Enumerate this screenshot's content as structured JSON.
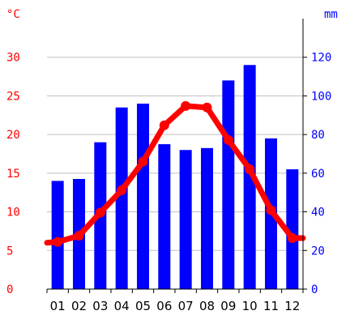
{
  "chart_data": {
    "type": "bar-line",
    "left_axis": {
      "unit": "°C",
      "ticks": [
        0,
        5,
        10,
        15,
        20,
        25,
        30
      ],
      "range": [
        0,
        35
      ],
      "color": "#ff0000"
    },
    "right_axis": {
      "unit": "mm",
      "ticks": [
        0,
        20,
        40,
        60,
        80,
        100,
        120
      ],
      "range": [
        0,
        140
      ],
      "color": "#0000ff"
    },
    "categories": [
      "01",
      "02",
      "03",
      "04",
      "05",
      "06",
      "07",
      "08",
      "09",
      "10",
      "11",
      "12"
    ],
    "precipitation_mm": [
      56,
      57,
      76,
      94,
      96,
      75,
      72,
      73,
      108,
      116,
      78,
      62
    ],
    "temperature_c": [
      6.1,
      6.9,
      9.9,
      12.8,
      16.5,
      21.2,
      23.7,
      23.5,
      19.3,
      15.5,
      10.2,
      6.6
    ],
    "grid": true,
    "colors": {
      "bars": "#0000ff",
      "line": "#ff0000",
      "grid": "#c0c0c0"
    }
  }
}
